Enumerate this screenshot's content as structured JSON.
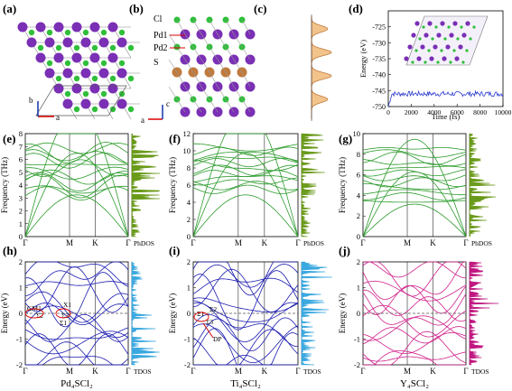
{
  "panel_letters": [
    "(a)",
    "(b)",
    "(c)",
    "(d)",
    "(e)",
    "(f)",
    "(g)",
    "(h)",
    "(i)",
    "(j)"
  ],
  "atom_labels": [
    "Cl",
    "Pd1",
    "Pd2",
    "S"
  ],
  "axis_letters": {
    "a": "a",
    "b": "b",
    "c": "c"
  },
  "colors": {
    "purple": "#7a2fb5",
    "green": "#2fbf3a",
    "brown": "#c07a3c",
    "phonon": "#2a9a2a",
    "phdos": "#6a9a1a",
    "band_blue": "#1c1cb0",
    "band_magenta": "#d0208a",
    "tdos_blue": "#3aa8e0",
    "tdos_magenta": "#c01880",
    "md_line": "#2a3ad0",
    "fermi": "#555555"
  },
  "md_chart": {
    "ylabel": "Energy (eV)",
    "xlabel": "Time (fs)",
    "yticks": [
      "-725",
      "-730",
      "-735",
      "-740",
      "-745",
      "-750"
    ],
    "xticks": [
      "0",
      "2000",
      "4000",
      "6000",
      "8000",
      "10000"
    ]
  },
  "phonon": {
    "ylabel": "Frequency (THz)",
    "dos_label": "PhDOS",
    "kpath": [
      "Γ",
      "M",
      "K",
      "Γ"
    ],
    "e_yticks": [
      "0",
      "1",
      "2",
      "3",
      "4",
      "5",
      "6",
      "7",
      "8"
    ],
    "f_yticks": [
      "0",
      "2",
      "4",
      "6",
      "8",
      "10",
      "12"
    ],
    "g_yticks": [
      "0",
      "2",
      "4",
      "6",
      "8",
      "10"
    ]
  },
  "bands": {
    "ylabel": "Energy (eV)",
    "dos_label": "TDOS",
    "kpath": [
      "Γ",
      "M",
      "K",
      "Γ"
    ],
    "yticks": [
      "-2",
      "-1",
      "0",
      "1",
      "2"
    ],
    "h_xlabel": "Pd₄SCl₂",
    "i_xlabel": "Ti₄SCl₂",
    "j_xlabel": "Y₄SCl₂",
    "h_annotations": [
      "GM1",
      "X1",
      "Σ2",
      "Σ3",
      "Σ1"
    ],
    "i_annotations": [
      "Σ1",
      "Σ2",
      "Σ3",
      "DP"
    ]
  }
}
